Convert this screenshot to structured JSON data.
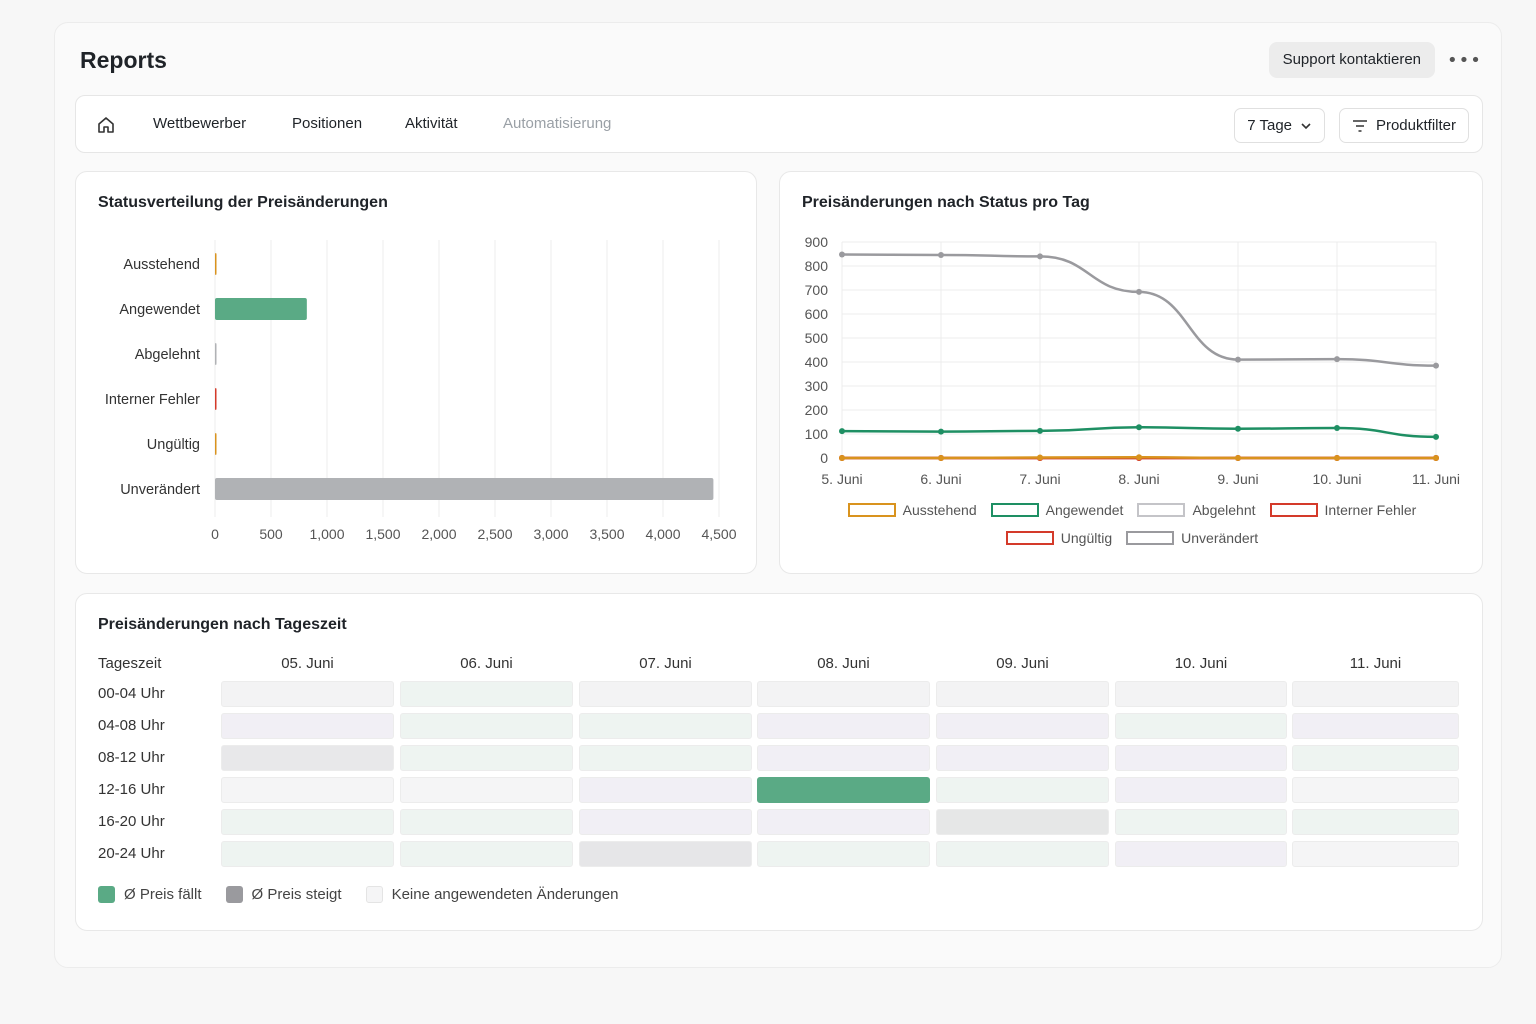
{
  "header": {
    "title": "Reports",
    "support_label": "Support kontaktieren",
    "more_label": "•••"
  },
  "nav": {
    "home_icon": "home-icon",
    "tabs": [
      {
        "label": "Wettbewerber",
        "disabled": false
      },
      {
        "label": "Positionen",
        "disabled": false
      },
      {
        "label": "Aktivität",
        "disabled": false
      },
      {
        "label": "Automatisierung",
        "disabled": true
      }
    ],
    "range_label": "7 Tage",
    "filter_label": "Produktfilter"
  },
  "colors": {
    "green": "#5aaa85",
    "green_line": "#1e8f63",
    "gray": "#b0b2b5",
    "gray_line": "#9a9a9e",
    "orange": "#d9931e",
    "red": "#d43a2a"
  },
  "status_chart": {
    "title": "Statusverteilung der Preisänderungen",
    "chart_data": {
      "type": "bar",
      "orientation": "horizontal",
      "categories": [
        "Ausstehend",
        "Angewendet",
        "Abgelehnt",
        "Interner Fehler",
        "Ungültig",
        "Unverändert"
      ],
      "values": [
        5,
        820,
        0,
        5,
        10,
        4450
      ],
      "bar_colors": [
        "#d9931e",
        "#5aaa85",
        "#b0b2b5",
        "#d43a2a",
        "#d9931e",
        "#b0b2b5"
      ],
      "xlim": [
        0,
        4500
      ],
      "xticks": [
        "0",
        "500",
        "1,000",
        "1,500",
        "2,000",
        "2,500",
        "3,000",
        "3,500",
        "4,000",
        "4,500"
      ],
      "grid": true
    }
  },
  "daily_chart": {
    "title": "Preisänderungen nach Status pro Tag",
    "chart_data": {
      "type": "line",
      "x": [
        "5. Juni",
        "6. Juni",
        "7. Juni",
        "8. Juni",
        "9. Juni",
        "10. Juni",
        "11. Juni"
      ],
      "ylim": [
        0,
        900
      ],
      "yticks": [
        "0",
        "100",
        "200",
        "300",
        "400",
        "500",
        "600",
        "700",
        "800",
        "900"
      ],
      "series": [
        {
          "name": "Ausstehend",
          "color": "#d9931e",
          "values": [
            0,
            0,
            2,
            3,
            0,
            0,
            0
          ]
        },
        {
          "name": "Angewendet",
          "color": "#1e8f63",
          "values": [
            112,
            110,
            113,
            128,
            122,
            125,
            88
          ]
        },
        {
          "name": "Abgelehnt",
          "color": "#c4c4c8",
          "values": [
            0,
            0,
            0,
            0,
            0,
            0,
            0
          ]
        },
        {
          "name": "Interner Fehler",
          "color": "#d43a2a",
          "values": [
            0,
            0,
            0,
            0,
            0,
            0,
            0
          ]
        },
        {
          "name": "Ungültig",
          "color": "#d43a2a",
          "values": [
            0,
            0,
            0,
            0,
            0,
            0,
            0
          ]
        },
        {
          "name": "Unverändert",
          "color": "#9a9a9e",
          "values": [
            848,
            846,
            840,
            692,
            410,
            412,
            385
          ]
        }
      ],
      "legend_placement": "bottom",
      "grid": true
    }
  },
  "heatmap": {
    "title": "Preisänderungen nach Tageszeit",
    "corner_label": "Tageszeit",
    "chart_data": {
      "type": "heatmap",
      "columns": [
        "05. Juni",
        "06. Juni",
        "07. Juni",
        "08. Juni",
        "09. Juni",
        "10. Juni",
        "11. Juni"
      ],
      "rows": [
        "00-04 Uhr",
        "04-08 Uhr",
        "08-12 Uhr",
        "12-16 Uhr",
        "16-20 Uhr",
        "20-24 Uhr"
      ],
      "cell_colors": [
        [
          "#f3f3f4",
          "#eef4f1",
          "#f3f3f4",
          "#f3f3f4",
          "#f3f3f4",
          "#f3f3f4",
          "#f3f3f4"
        ],
        [
          "#f1eff5",
          "#eef4f1",
          "#eef4f1",
          "#f1eff5",
          "#f1eff5",
          "#eef4f1",
          "#f1eff5"
        ],
        [
          "#e8e8ea",
          "#eef4f1",
          "#eef4f1",
          "#f1eff5",
          "#f1eff5",
          "#f1eff5",
          "#eef4f1"
        ],
        [
          "#f5f5f6",
          "#f5f5f6",
          "#f1eff5",
          "#5aaa85",
          "#eef4f1",
          "#f1eff5",
          "#f5f5f6"
        ],
        [
          "#eef4f1",
          "#eef4f1",
          "#f1eff5",
          "#f1eff5",
          "#e6e7e7",
          "#eef4f1",
          "#eef4f1"
        ],
        [
          "#eef4f1",
          "#eef4f1",
          "#e6e6e8",
          "#eef4f1",
          "#eef4f1",
          "#f1eff5",
          "#f5f5f6"
        ]
      ]
    },
    "legend": [
      {
        "label": "Ø Preis fällt",
        "color": "#5aaa85"
      },
      {
        "label": "Ø Preis steigt",
        "color": "#9a9a9e"
      },
      {
        "label": "Keine angewendeten Änderungen",
        "color": "#f5f5f6"
      }
    ]
  }
}
